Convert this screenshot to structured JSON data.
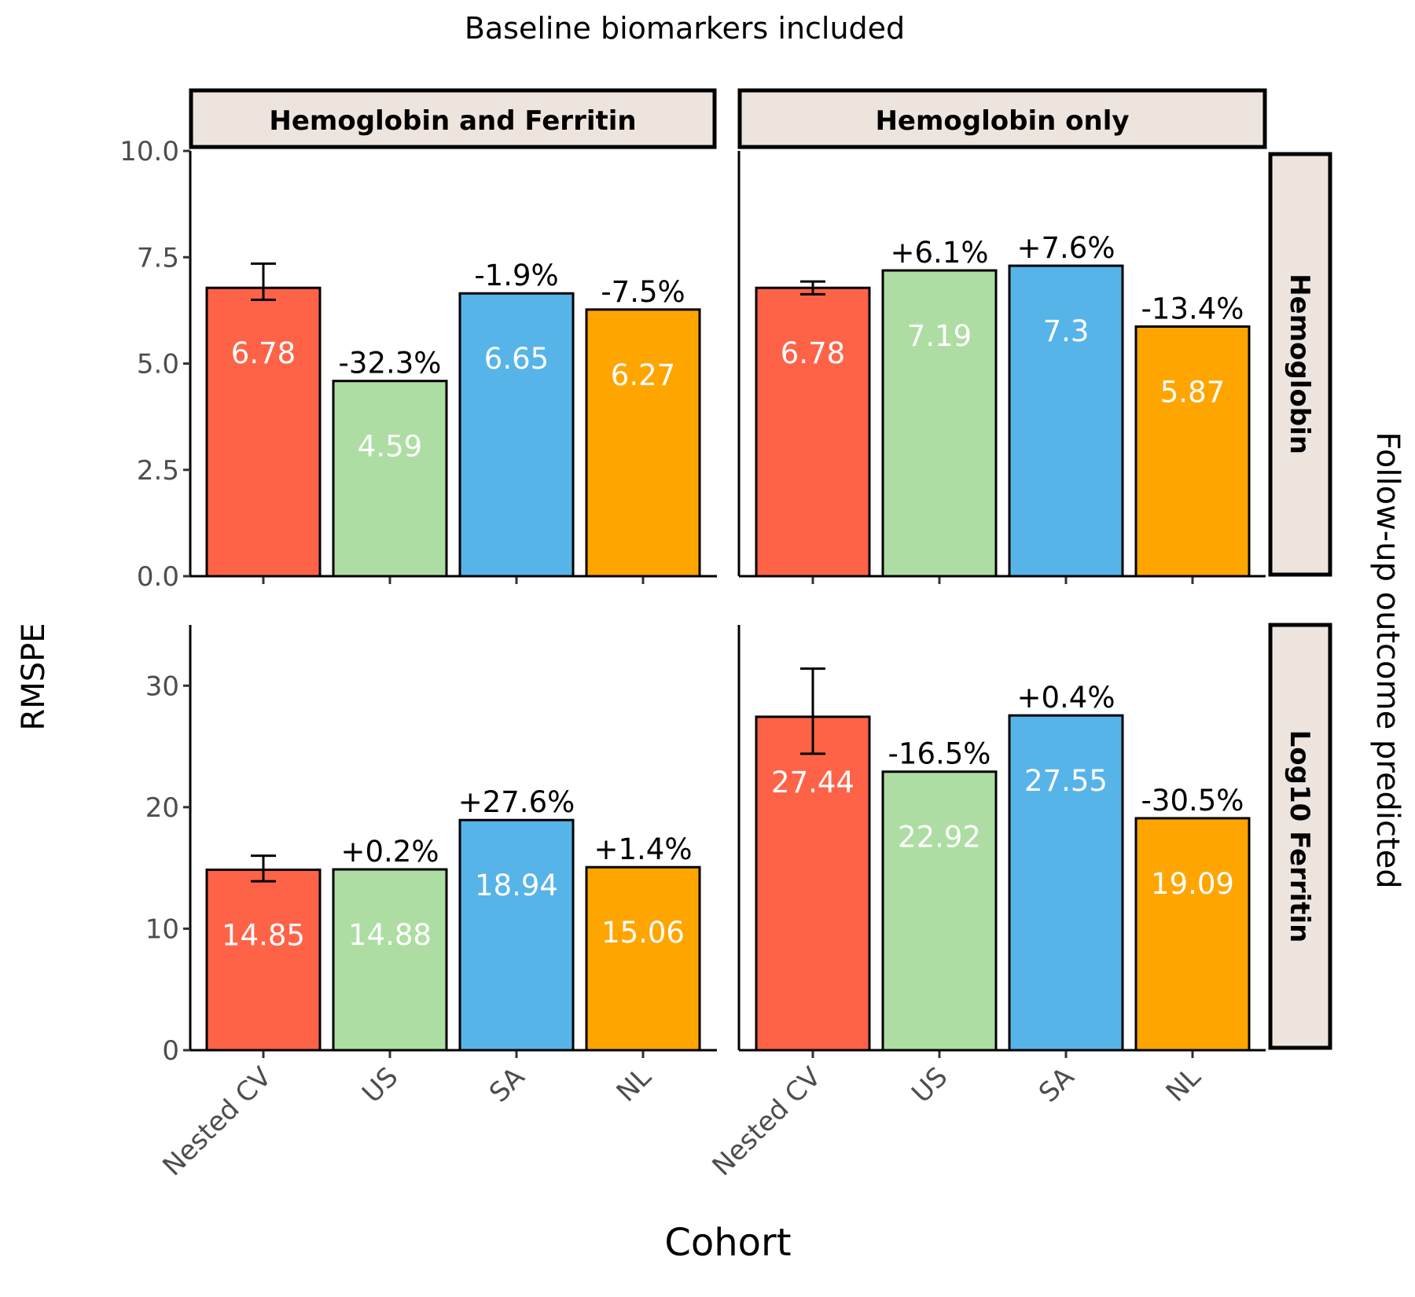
{
  "chart_data": {
    "type": "bar",
    "title": "Baseline biomarkers included",
    "xlabel": "Cohort",
    "ylabel": "RMSPE",
    "facet_row_title": "Follow-up outcome predicted",
    "categories": [
      "Nested CV",
      "US",
      "SA",
      "NL"
    ],
    "colors": {
      "Nested CV": "#ff6347",
      "US": "#addda2",
      "SA": "#56b4e9",
      "NL": "#ffa500"
    },
    "column_facets": [
      "Hemoglobin and Ferritin",
      "Hemoglobin only"
    ],
    "row_facets": [
      {
        "label": "Hemoglobin",
        "ylim": [
          0,
          10
        ],
        "yticks": [
          "0.0",
          "2.5",
          "5.0",
          "7.5",
          "10.0"
        ],
        "ytick_values": [
          0,
          2.5,
          5,
          7.5,
          10
        ]
      },
      {
        "label": "Log10 Ferritin",
        "ylim": [
          0,
          35
        ],
        "yticks": [
          "0",
          "10",
          "20",
          "30"
        ],
        "ytick_values": [
          0,
          10,
          20,
          30
        ]
      }
    ],
    "panels": [
      {
        "row": 0,
        "col": 0,
        "values": [
          6.78,
          4.59,
          6.65,
          6.27
        ],
        "value_labels": [
          "6.78",
          "4.59",
          "6.65",
          "6.27"
        ],
        "pct_labels": [
          "",
          "-32.3%",
          "-1.9%",
          "-7.5%"
        ],
        "error": [
          6.5,
          7.35
        ]
      },
      {
        "row": 0,
        "col": 1,
        "values": [
          6.78,
          7.19,
          7.3,
          5.87
        ],
        "value_labels": [
          "6.78",
          "7.19",
          "7.3",
          "5.87"
        ],
        "pct_labels": [
          "",
          "+6.1%",
          "+7.6%",
          "-13.4%"
        ],
        "error": [
          6.63,
          6.93
        ]
      },
      {
        "row": 1,
        "col": 0,
        "values": [
          14.85,
          14.88,
          18.94,
          15.06
        ],
        "value_labels": [
          "14.85",
          "14.88",
          "18.94",
          "15.06"
        ],
        "pct_labels": [
          "",
          "+0.2%",
          "+27.6%",
          "+1.4%"
        ],
        "error": [
          13.9,
          16.0
        ]
      },
      {
        "row": 1,
        "col": 1,
        "values": [
          27.44,
          22.92,
          27.55,
          19.09
        ],
        "value_labels": [
          "27.44",
          "22.92",
          "27.55",
          "19.09"
        ],
        "pct_labels": [
          "",
          "-16.5%",
          "+0.4%",
          "-30.5%"
        ],
        "error": [
          24.4,
          31.4
        ]
      }
    ]
  }
}
